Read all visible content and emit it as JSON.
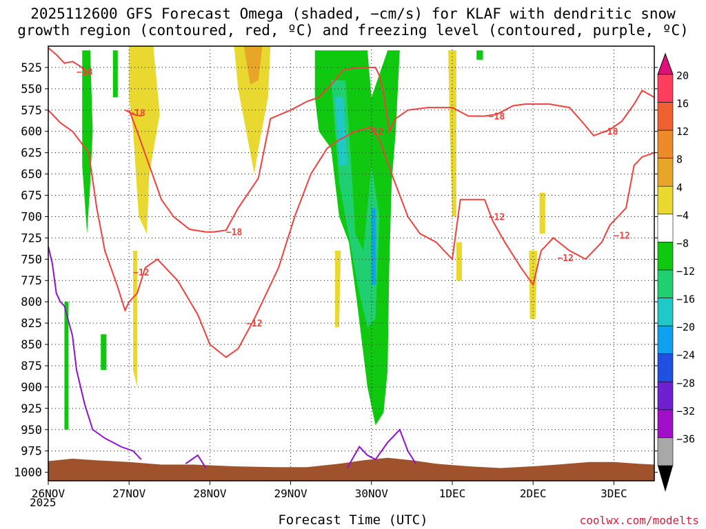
{
  "title_line1": "2025112600 GFS Forecast Omega (shaded, −cm/s) for KLAF with dendritic snow",
  "title_line2": "growth region (contoured, red, ºC) and freezing level (contoured, purple, ºC)",
  "xlabel": "Forecast Time (UTC)",
  "year_label": "2025",
  "credit": "coolwx.com/modelts",
  "chart_data": {
    "type": "heatmap",
    "title": "2025112600 GFS Forecast Omega (shaded, −cm/s) for KLAF with dendritic snow growth region (contoured, red, ºC) and freezing level (contoured, purple, ºC)",
    "xlabel": "Forecast Time (UTC)",
    "ylabel": "",
    "x_range_days": [
      0,
      7.5
    ],
    "x_ticks": [
      {
        "day": 0,
        "label": "26NOV"
      },
      {
        "day": 1,
        "label": "27NOV"
      },
      {
        "day": 2,
        "label": "28NOV"
      },
      {
        "day": 3,
        "label": "29NOV"
      },
      {
        "day": 4,
        "label": "30NOV"
      },
      {
        "day": 5,
        "label": "1DEC"
      },
      {
        "day": 6,
        "label": "2DEC"
      },
      {
        "day": 7,
        "label": "3DEC"
      }
    ],
    "y_range_hpa": [
      500,
      1010
    ],
    "y_ticks": [
      525,
      550,
      575,
      600,
      625,
      650,
      675,
      700,
      725,
      750,
      775,
      800,
      825,
      850,
      875,
      900,
      925,
      950,
      975,
      1000
    ],
    "grid": "dotted",
    "colorbar": {
      "labels": [
        "20",
        "16",
        "12",
        "8",
        "4",
        "−4",
        "−8",
        "−12",
        "−16",
        "−20",
        "−24",
        "−28",
        "−32",
        "−36"
      ],
      "colors": [
        "#ff3d5e",
        "#ee6030",
        "#ed8a2a",
        "#e8a628",
        "#e8d830",
        "#ffffff",
        "#10c810",
        "#20d070",
        "#20c8c8",
        "#10a0f0",
        "#2050e0",
        "#7020d0",
        "#a010c8",
        "#a8a8a8"
      ],
      "top_arrow_color": "#e0107a",
      "bottom_arrow_color": "#000000"
    },
    "shaded_regions": [
      {
        "color": "#e8d830",
        "pts": [
          [
            1.0,
            500
          ],
          [
            1.3,
            500
          ],
          [
            1.38,
            580
          ],
          [
            1.25,
            650
          ],
          [
            1.22,
            720
          ],
          [
            1.12,
            700
          ],
          [
            1.05,
            600
          ],
          [
            1.0,
            560
          ]
        ]
      },
      {
        "color": "#e8d830",
        "pts": [
          [
            2.3,
            500
          ],
          [
            2.75,
            500
          ],
          [
            2.72,
            560
          ],
          [
            2.6,
            620
          ],
          [
            2.55,
            650
          ],
          [
            2.45,
            600
          ],
          [
            2.35,
            550
          ]
        ]
      },
      {
        "color": "#e8a628",
        "pts": [
          [
            2.42,
            500
          ],
          [
            2.65,
            500
          ],
          [
            2.6,
            540
          ],
          [
            2.5,
            545
          ]
        ]
      },
      {
        "color": "#e8d830",
        "pts": [
          [
            4.95,
            505
          ],
          [
            5.05,
            505
          ],
          [
            5.05,
            700
          ],
          [
            5.0,
            700
          ],
          [
            4.97,
            600
          ]
        ]
      },
      {
        "color": "#e8d830",
        "pts": [
          [
            5.95,
            740
          ],
          [
            6.05,
            740
          ],
          [
            6.03,
            820
          ],
          [
            5.96,
            820
          ]
        ]
      },
      {
        "color": "#e8d830",
        "pts": [
          [
            6.08,
            672
          ],
          [
            6.15,
            672
          ],
          [
            6.15,
            720
          ],
          [
            6.08,
            720
          ]
        ]
      },
      {
        "color": "#e8d830",
        "pts": [
          [
            5.05,
            730
          ],
          [
            5.12,
            730
          ],
          [
            5.12,
            775
          ],
          [
            5.05,
            775
          ]
        ]
      },
      {
        "color": "#e8d830",
        "pts": [
          [
            1.05,
            740
          ],
          [
            1.1,
            740
          ],
          [
            1.1,
            900
          ],
          [
            1.05,
            880
          ]
        ]
      },
      {
        "color": "#e8d830",
        "pts": [
          [
            3.55,
            740
          ],
          [
            3.62,
            740
          ],
          [
            3.6,
            830
          ],
          [
            3.55,
            830
          ]
        ]
      },
      {
        "color": "#10c810",
        "pts": [
          [
            3.3,
            505
          ],
          [
            3.95,
            505
          ],
          [
            4.0,
            560
          ],
          [
            4.2,
            505
          ],
          [
            4.35,
            505
          ],
          [
            4.3,
            600
          ],
          [
            4.25,
            660
          ],
          [
            4.22,
            760
          ],
          [
            4.2,
            880
          ],
          [
            4.15,
            930
          ],
          [
            4.05,
            945
          ],
          [
            3.95,
            900
          ],
          [
            3.82,
            800
          ],
          [
            3.72,
            730
          ],
          [
            3.6,
            700
          ],
          [
            3.5,
            620
          ],
          [
            3.35,
            600
          ],
          [
            3.3,
            560
          ]
        ]
      },
      {
        "color": "#20d070",
        "pts": [
          [
            3.5,
            540
          ],
          [
            3.68,
            540
          ],
          [
            3.75,
            640
          ],
          [
            3.8,
            720
          ],
          [
            3.9,
            740
          ],
          [
            4.0,
            640
          ],
          [
            4.1,
            700
          ],
          [
            4.05,
            820
          ],
          [
            3.95,
            830
          ],
          [
            3.85,
            790
          ],
          [
            3.6,
            660
          ]
        ]
      },
      {
        "color": "#20c8c8",
        "pts": [
          [
            3.55,
            560
          ],
          [
            3.65,
            560
          ],
          [
            3.7,
            640
          ],
          [
            3.6,
            640
          ]
        ]
      },
      {
        "color": "#10a0f0",
        "pts": [
          [
            4.0,
            690
          ],
          [
            4.05,
            690
          ],
          [
            4.05,
            780
          ],
          [
            4.0,
            780
          ]
        ]
      },
      {
        "color": "#10c810",
        "pts": [
          [
            0.42,
            505
          ],
          [
            0.52,
            505
          ],
          [
            0.55,
            600
          ],
          [
            0.52,
            660
          ],
          [
            0.48,
            720
          ],
          [
            0.42,
            640
          ]
        ]
      },
      {
        "color": "#10c810",
        "pts": [
          [
            0.2,
            800
          ],
          [
            0.25,
            800
          ],
          [
            0.25,
            950
          ],
          [
            0.2,
            950
          ]
        ]
      },
      {
        "color": "#10c810",
        "pts": [
          [
            0.65,
            838
          ],
          [
            0.72,
            838
          ],
          [
            0.72,
            880
          ],
          [
            0.65,
            880
          ]
        ]
      },
      {
        "color": "#10c810",
        "pts": [
          [
            5.3,
            505
          ],
          [
            5.38,
            505
          ],
          [
            5.38,
            516
          ],
          [
            5.3,
            516
          ]
        ]
      },
      {
        "color": "#10c810",
        "pts": [
          [
            0.8,
            505
          ],
          [
            0.86,
            505
          ],
          [
            0.86,
            560
          ],
          [
            0.8,
            560
          ]
        ]
      }
    ],
    "dendritic_contours": [
      {
        "label": "−18",
        "label_at": [
          0.45,
          530
        ],
        "pts": [
          [
            0,
            502
          ],
          [
            0.1,
            510
          ],
          [
            0.2,
            520
          ],
          [
            0.3,
            518
          ],
          [
            0.4,
            524
          ],
          [
            0.5,
            532
          ]
        ]
      },
      {
        "label": "−18",
        "label_at": [
          2.3,
          718
        ],
        "pts": [
          [
            1.0,
            575
          ],
          [
            1.1,
            600
          ],
          [
            1.25,
            640
          ],
          [
            1.4,
            680
          ],
          [
            1.55,
            700
          ],
          [
            1.75,
            715
          ],
          [
            1.95,
            718
          ],
          [
            2.05,
            718
          ],
          [
            2.2,
            716
          ],
          [
            2.35,
            690
          ],
          [
            2.6,
            655
          ],
          [
            2.75,
            585
          ],
          [
            3.0,
            575
          ],
          [
            3.2,
            565
          ],
          [
            3.35,
            560
          ],
          [
            3.55,
            540
          ],
          [
            3.65,
            528
          ],
          [
            3.85,
            525
          ],
          [
            4.05,
            525
          ],
          [
            4.1,
            535
          ],
          [
            4.15,
            555
          ],
          [
            4.22,
            600
          ],
          [
            4.3,
            585
          ],
          [
            4.45,
            575
          ],
          [
            4.7,
            572
          ],
          [
            4.85,
            572
          ],
          [
            5.0,
            572
          ],
          [
            5.2,
            582
          ],
          [
            5.4,
            582
          ],
          [
            5.55,
            580
          ],
          [
            5.75,
            570
          ],
          [
            5.9,
            568
          ],
          [
            6.2,
            568
          ],
          [
            6.45,
            572
          ],
          [
            6.6,
            588
          ],
          [
            6.75,
            605
          ],
          [
            6.95,
            598
          ],
          [
            7.1,
            588
          ],
          [
            7.25,
            568
          ],
          [
            7.35,
            552
          ],
          [
            7.5,
            560
          ]
        ]
      },
      {
        "label": "−18",
        "label_at": [
          1.1,
          578
        ],
        "pts": [
          [
            0.95,
            575
          ],
          [
            1.05,
            580
          ],
          [
            1.15,
            582
          ]
        ]
      },
      {
        "label": "−18",
        "label_at": [
          5.55,
          582
        ],
        "pts": []
      },
      {
        "label": "−18",
        "label_at": [
          6.95,
          600
        ],
        "pts": []
      },
      {
        "label": "−12",
        "label_at": [
          1.15,
          765
        ],
        "pts": [
          [
            0,
            575
          ],
          [
            0.15,
            590
          ],
          [
            0.3,
            600
          ],
          [
            0.5,
            625
          ],
          [
            0.6,
            690
          ],
          [
            0.7,
            740
          ],
          [
            0.85,
            780
          ],
          [
            0.95,
            810
          ],
          [
            1.0,
            800
          ],
          [
            1.1,
            790
          ],
          [
            1.2,
            760
          ],
          [
            1.35,
            750
          ],
          [
            1.6,
            775
          ],
          [
            1.85,
            815
          ],
          [
            2.0,
            850
          ],
          [
            2.2,
            865
          ],
          [
            2.35,
            855
          ],
          [
            2.55,
            820
          ],
          [
            2.85,
            760
          ],
          [
            3.05,
            700
          ],
          [
            3.25,
            650
          ],
          [
            3.45,
            620
          ],
          [
            3.6,
            610
          ],
          [
            3.8,
            600
          ],
          [
            4.0,
            595
          ],
          [
            4.1,
            610
          ],
          [
            4.25,
            650
          ],
          [
            4.45,
            700
          ],
          [
            4.6,
            720
          ],
          [
            4.8,
            730
          ],
          [
            5.0,
            750
          ],
          [
            5.1,
            680
          ],
          [
            5.25,
            680
          ],
          [
            5.4,
            680
          ],
          [
            5.5,
            705
          ],
          [
            5.65,
            730
          ],
          [
            5.85,
            760
          ],
          [
            6.0,
            780
          ],
          [
            6.1,
            740
          ],
          [
            6.25,
            725
          ],
          [
            6.45,
            740
          ],
          [
            6.65,
            750
          ],
          [
            6.85,
            730
          ],
          [
            6.95,
            710
          ],
          [
            7.05,
            700
          ],
          [
            7.15,
            690
          ],
          [
            7.25,
            640
          ],
          [
            7.35,
            630
          ],
          [
            7.5,
            625
          ]
        ]
      },
      {
        "label": "−12",
        "label_at": [
          4.05,
          600
        ],
        "pts": []
      },
      {
        "label": "−12",
        "label_at": [
          2.55,
          825
        ],
        "pts": []
      },
      {
        "label": "−12",
        "label_at": [
          5.55,
          700
        ],
        "pts": []
      },
      {
        "label": "−12",
        "label_at": [
          6.4,
          748
        ],
        "pts": []
      },
      {
        "label": "−12",
        "label_at": [
          7.1,
          722
        ],
        "pts": []
      }
    ],
    "freezing_level_contours": [
      {
        "label": "",
        "pts": [
          [
            0,
            735
          ],
          [
            0.05,
            755
          ],
          [
            0.1,
            790
          ],
          [
            0.15,
            800
          ],
          [
            0.2,
            805
          ],
          [
            0.3,
            840
          ],
          [
            0.35,
            880
          ],
          [
            0.45,
            920
          ],
          [
            0.55,
            950
          ],
          [
            0.7,
            960
          ],
          [
            0.9,
            970
          ],
          [
            1.05,
            975
          ],
          [
            1.15,
            985
          ]
        ]
      },
      {
        "label": "",
        "pts": [
          [
            1.7,
            990
          ],
          [
            1.85,
            980
          ],
          [
            1.95,
            995
          ]
        ]
      },
      {
        "label": "",
        "pts": [
          [
            3.7,
            995
          ],
          [
            3.85,
            970
          ],
          [
            3.95,
            980
          ],
          [
            4.05,
            985
          ],
          [
            4.2,
            965
          ],
          [
            4.35,
            950
          ],
          [
            4.45,
            975
          ],
          [
            4.55,
            990
          ]
        ]
      }
    ],
    "terrain_color": "#a0522d",
    "terrain_pressure_hpa": [
      [
        0,
        987
      ],
      [
        0.3,
        984
      ],
      [
        0.6,
        986
      ],
      [
        1.0,
        988
      ],
      [
        1.4,
        991
      ],
      [
        1.8,
        991
      ],
      [
        2.3,
        993
      ],
      [
        2.8,
        994
      ],
      [
        3.2,
        994
      ],
      [
        3.6,
        990
      ],
      [
        3.9,
        986
      ],
      [
        4.2,
        983
      ],
      [
        4.5,
        986
      ],
      [
        4.8,
        990
      ],
      [
        5.2,
        993
      ],
      [
        5.6,
        995
      ],
      [
        6.0,
        993
      ],
      [
        6.3,
        991
      ],
      [
        6.7,
        988
      ],
      [
        7.0,
        988
      ],
      [
        7.3,
        990
      ],
      [
        7.5,
        991
      ]
    ]
  }
}
